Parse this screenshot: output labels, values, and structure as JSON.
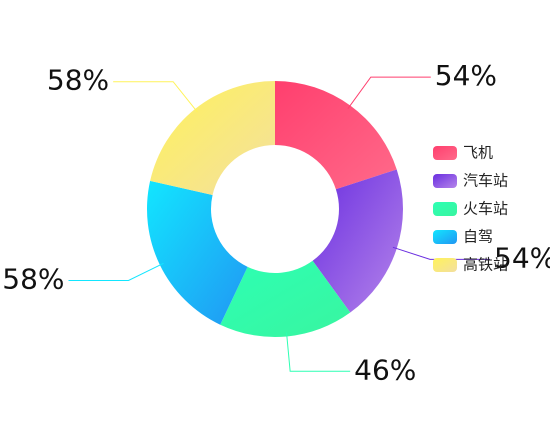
{
  "chart_data": {
    "type": "pie",
    "donut": true,
    "categories": [
      "飞机",
      "汽车站",
      "火车站",
      "自驾",
      "高铁站"
    ],
    "values": [
      54,
      54,
      46,
      58,
      58
    ],
    "value_labels": [
      "54%",
      "54%",
      "46%",
      "58%",
      "58%"
    ],
    "colors": [
      [
        "#ff3f6e",
        "#ff6a8a"
      ],
      [
        "#6a2ee0",
        "#b585ea"
      ],
      [
        "#2dffb3",
        "#39f5a0"
      ],
      [
        "#12e6ff",
        "#2196f3"
      ],
      [
        "#fff35a",
        "#f3dfa0"
      ]
    ],
    "legend": "right"
  }
}
